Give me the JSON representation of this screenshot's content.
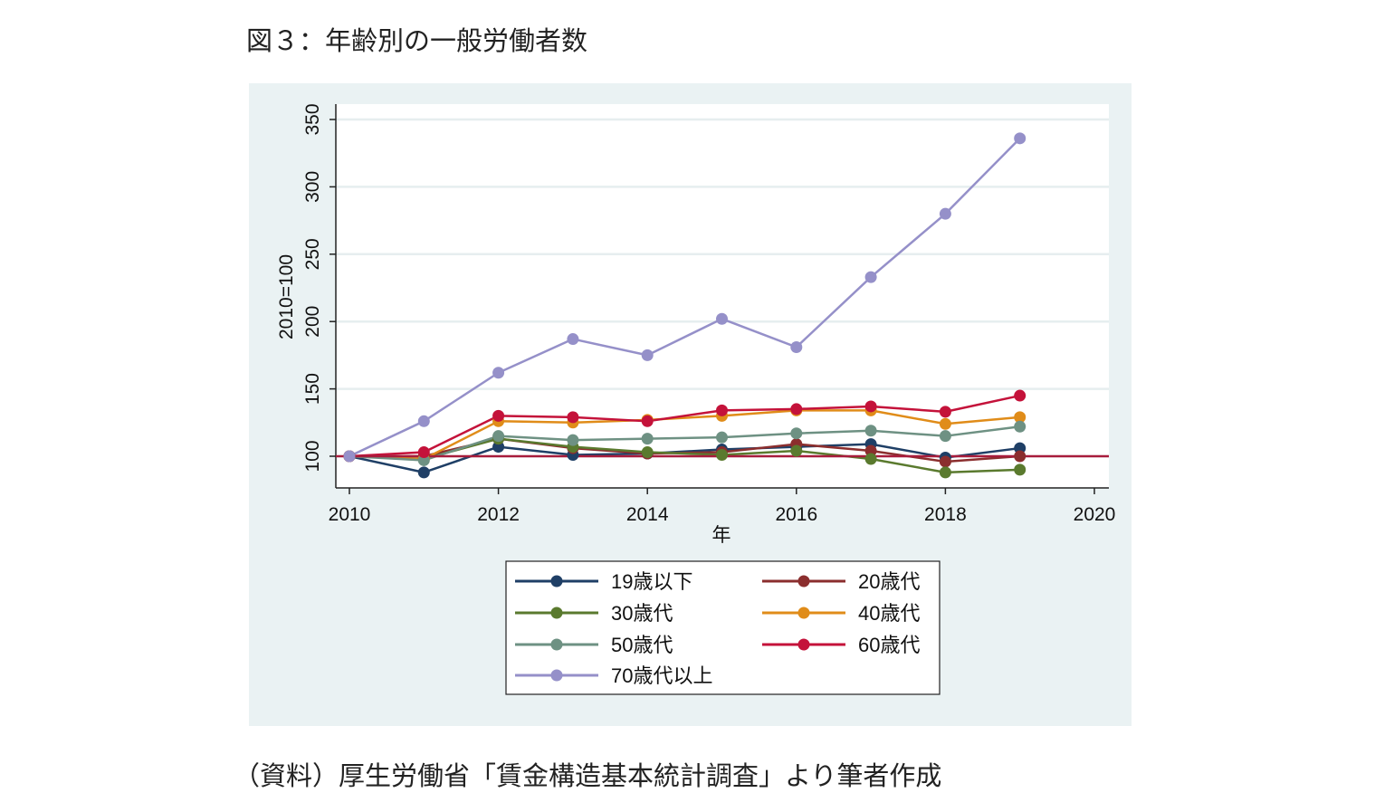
{
  "figure": {
    "title": "図３：年齢別の一般労働者数",
    "source": "（資料）厚生労働省「賃金構造基本統計調査」より筆者作成"
  },
  "chart_data": {
    "type": "line",
    "xlabel": "年",
    "ylabel": "2010=100",
    "xlim": [
      2010,
      2020
    ],
    "ylim": [
      77,
      357
    ],
    "xticks": [
      2010,
      2012,
      2014,
      2016,
      2018,
      2020
    ],
    "yticks": [
      100,
      150,
      200,
      250,
      300,
      350
    ],
    "grid": true,
    "legend_position": "bottom",
    "reference_line": {
      "y": 100,
      "color": "#a81c3c"
    },
    "x": [
      2010,
      2011,
      2012,
      2013,
      2014,
      2015,
      2016,
      2017,
      2018,
      2019
    ],
    "series": [
      {
        "name": "19歳以下",
        "color": "#1f3f66",
        "values": [
          100,
          88,
          107,
          101,
          102,
          105,
          107,
          109,
          99,
          106
        ]
      },
      {
        "name": "20歳代",
        "color": "#8b2e2e",
        "values": [
          100,
          100,
          113,
          106,
          102,
          103,
          109,
          104,
          96,
          100
        ]
      },
      {
        "name": "30歳代",
        "color": "#5a7a2e",
        "values": [
          100,
          98,
          113,
          107,
          103,
          101,
          104,
          98,
          88,
          90
        ]
      },
      {
        "name": "40歳代",
        "color": "#e08c19",
        "values": [
          100,
          98,
          126,
          125,
          127,
          130,
          134,
          134,
          124,
          129
        ]
      },
      {
        "name": "50歳代",
        "color": "#6e9183",
        "values": [
          100,
          97,
          115,
          112,
          113,
          114,
          117,
          119,
          115,
          122
        ]
      },
      {
        "name": "60歳代",
        "color": "#c4123a",
        "values": [
          100,
          103,
          130,
          129,
          126,
          134,
          135,
          137,
          133,
          145
        ]
      },
      {
        "name": "70歳代以上",
        "color": "#9590c9",
        "values": [
          100,
          126,
          162,
          187,
          175,
          202,
          181,
          233,
          280,
          336
        ]
      }
    ]
  }
}
